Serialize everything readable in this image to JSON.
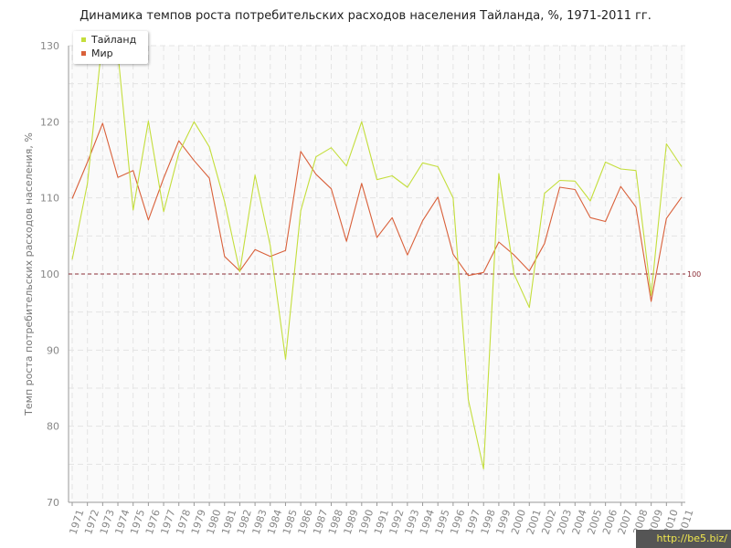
{
  "title": "Динамика темпов роста потребительских расходов населения Тайланда, %, 1971-2011 гг.",
  "watermark": "http://be5.biz/",
  "colors": {
    "thailand": "#c4de3c",
    "world": "#d9603a",
    "reference": "#8b2c35",
    "grid": "#e4e4e4",
    "axis": "#999999",
    "tick_text": "#888888"
  },
  "chart_data": {
    "type": "line",
    "title": "Динамика темпов роста потребительских расходов населения Тайланда, %, 1971-2011 гг.",
    "xlabel": "",
    "ylabel": "Темп роста потребительских расходов населения, %",
    "ylim": [
      70,
      130
    ],
    "yticks": [
      "70",
      "80",
      "90",
      "100",
      "110",
      "120",
      "130"
    ],
    "grid": true,
    "legend_position": "top-left",
    "categories": [
      "1971",
      "1972",
      "1973",
      "1974",
      "1975",
      "1976",
      "1977",
      "1978",
      "1979",
      "1980",
      "1981",
      "1982",
      "1983",
      "1984",
      "1985",
      "1986",
      "1987",
      "1988",
      "1989",
      "1990",
      "1991",
      "1992",
      "1993",
      "1994",
      "1995",
      "1996",
      "1997",
      "1998",
      "1999",
      "2000",
      "2001",
      "2002",
      "2003",
      "2004",
      "2005",
      "2006",
      "2007",
      "2008",
      "2009",
      "2010",
      "2011"
    ],
    "series": [
      {
        "name": "Тайланд",
        "color": "#c4de3c",
        "values": [
          101.9,
          111.9,
          131.1,
          129.1,
          108.4,
          120.1,
          108.2,
          115.9,
          120.0,
          116.7,
          109.5,
          100.3,
          113.0,
          103.7,
          88.8,
          108.3,
          115.4,
          116.6,
          114.2,
          120.0,
          112.4,
          112.9,
          111.4,
          114.6,
          114.1,
          110.0,
          83.5,
          74.4,
          113.2,
          100.0,
          95.6,
          110.6,
          112.3,
          112.2,
          109.6,
          114.7,
          113.8,
          113.6,
          97.2,
          117.1,
          114.1
        ]
      },
      {
        "name": "Мир",
        "color": "#d9603a",
        "values": [
          109.9,
          114.7,
          119.8,
          112.7,
          113.6,
          107.1,
          112.6,
          117.5,
          114.9,
          112.6,
          102.3,
          100.4,
          103.2,
          102.3,
          103.1,
          116.1,
          113.1,
          111.2,
          104.3,
          111.9,
          104.8,
          107.4,
          102.5,
          107.0,
          110.1,
          102.6,
          99.8,
          100.2,
          104.2,
          102.5,
          100.4,
          104.0,
          111.4,
          111.1,
          107.4,
          106.9,
          111.5,
          108.8,
          96.4,
          107.3,
          110.1
        ]
      }
    ],
    "reference_line": {
      "value": 100,
      "label": "100"
    }
  }
}
